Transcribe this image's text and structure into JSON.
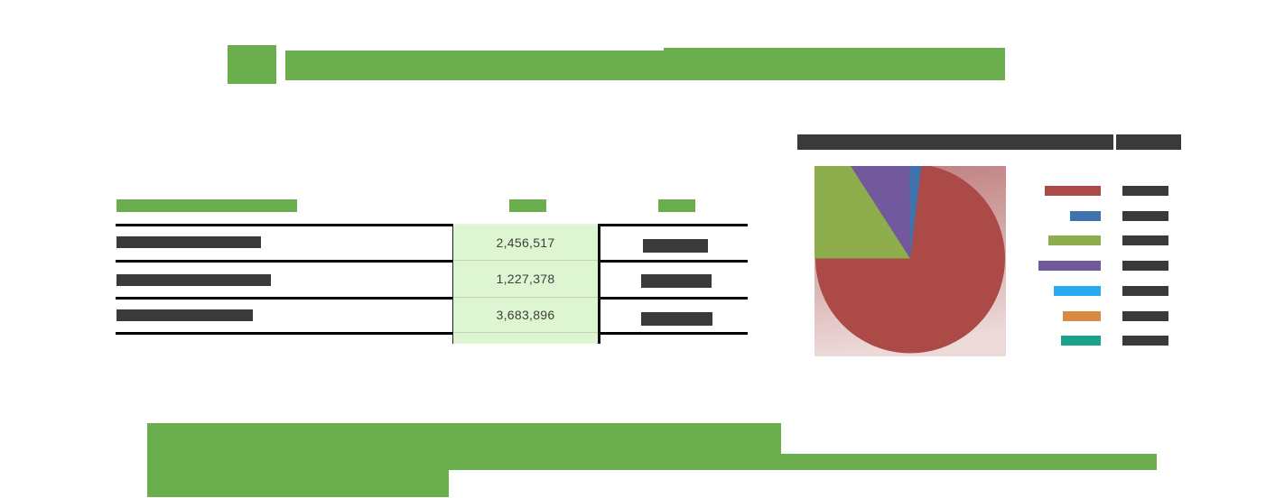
{
  "page": {
    "background": "#ffffff"
  },
  "colors": {
    "redaction_green": "#6aae4e",
    "redaction_dark": "#3a3a3a",
    "table_line": "#000000"
  },
  "title": {
    "redacted": true
  },
  "table": {
    "value_cell_bg": "#def5d2",
    "header_redacted": true,
    "rows": [
      {
        "value": "2,456,517"
      },
      {
        "value": "1,227,378"
      },
      {
        "value": "3,683,896"
      }
    ]
  },
  "chart_data": {
    "type": "pie",
    "title_redacted": true,
    "legend_position": "right",
    "slices": [
      {
        "name": "brick-red",
        "color": "#ab4a47",
        "percent": 73.1
      },
      {
        "name": "steel-blue",
        "color": "#3e73ae",
        "percent": 2.0
      },
      {
        "name": "olive-green",
        "color": "#8ead4d",
        "percent": 15.9
      },
      {
        "name": "purple",
        "color": "#72589c",
        "percent": 9.0
      },
      {
        "name": "bright-blue",
        "color": "#29a9f2",
        "percent": 0
      },
      {
        "name": "orange",
        "color": "#d98a42",
        "percent": 0
      },
      {
        "name": "teal",
        "color": "#1aa189",
        "percent": 0
      }
    ],
    "legend": [
      {
        "color": "#ab4a47",
        "swatch_width": 62
      },
      {
        "color": "#3e73ae",
        "swatch_width": 34
      },
      {
        "color": "#8ead4d",
        "swatch_width": 58
      },
      {
        "color": "#72589c",
        "swatch_width": 69
      },
      {
        "color": "#29a9f2",
        "swatch_width": 52
      },
      {
        "color": "#d98a42",
        "swatch_width": 42
      },
      {
        "color": "#1aa189",
        "swatch_width": 44
      }
    ]
  }
}
